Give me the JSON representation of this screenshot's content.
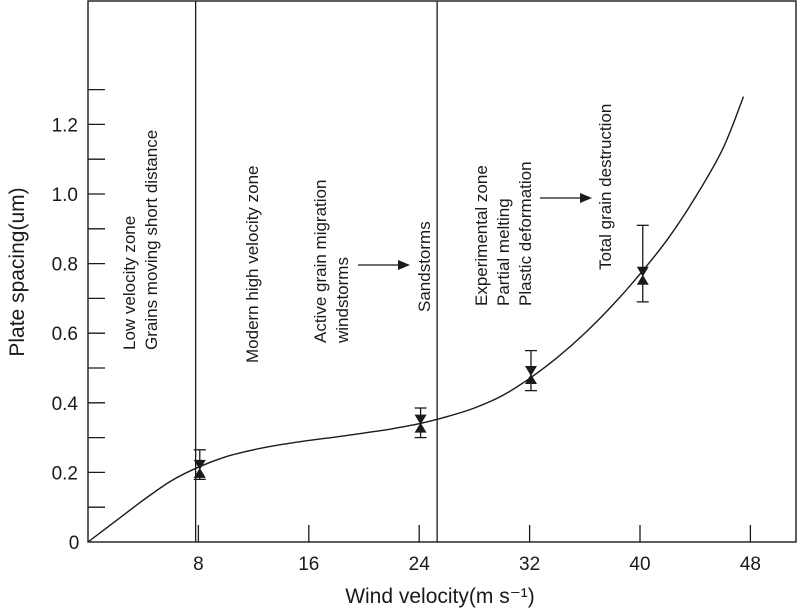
{
  "chart_data": {
    "type": "scatter",
    "xlabel": "Wind velocity(m s⁻¹)",
    "ylabel": "Plate spacing(um)",
    "xlim": [
      0,
      50
    ],
    "ylim": [
      0,
      1.4
    ],
    "x_ticks": [
      8,
      16,
      24,
      32,
      40,
      48
    ],
    "y_ticks": [
      0.2,
      0.4,
      0.6,
      0.8,
      1.0,
      1.2
    ],
    "y_minor_ticks": [
      0.1,
      0.3,
      0.5,
      0.7,
      0.9,
      1.1,
      1.3
    ],
    "origin_label": "0",
    "grid": false,
    "points": [
      {
        "x": 8.1,
        "y": 0.21,
        "err_low": 0.18,
        "err_high": 0.265
      },
      {
        "x": 24.1,
        "y": 0.34,
        "err_low": 0.3,
        "err_high": 0.385
      },
      {
        "x": 32.1,
        "y": 0.48,
        "err_low": 0.435,
        "err_high": 0.55
      },
      {
        "x": 40.2,
        "y": 0.765,
        "err_low": 0.69,
        "err_high": 0.91
      }
    ],
    "fit_curve": [
      [
        0,
        0.0
      ],
      [
        2,
        0.06
      ],
      [
        4,
        0.12
      ],
      [
        6,
        0.175
      ],
      [
        8,
        0.215
      ],
      [
        10,
        0.245
      ],
      [
        12,
        0.265
      ],
      [
        14,
        0.28
      ],
      [
        16,
        0.292
      ],
      [
        18,
        0.302
      ],
      [
        20,
        0.313
      ],
      [
        22,
        0.325
      ],
      [
        24,
        0.34
      ],
      [
        26,
        0.36
      ],
      [
        28,
        0.385
      ],
      [
        30,
        0.42
      ],
      [
        32,
        0.47
      ],
      [
        34,
        0.53
      ],
      [
        36,
        0.6
      ],
      [
        38,
        0.68
      ],
      [
        40,
        0.77
      ],
      [
        42,
        0.87
      ],
      [
        44,
        0.99
      ],
      [
        46,
        1.13
      ],
      [
        47.5,
        1.28
      ]
    ],
    "dividers": [
      {
        "x": 7.8
      },
      {
        "x": 25.3
      }
    ],
    "annotations": [
      {
        "lines": [
          "Low velocity zone",
          "Grains moving short distance"
        ]
      },
      {
        "lines": [
          "Modern high velocity zone"
        ]
      },
      {
        "lines": [
          "Active grain migration",
          "windstorms"
        ]
      },
      {
        "lines": [
          "Sandstorms"
        ]
      },
      {
        "lines": [
          "Experimental zone",
          "Partial melting",
          "Plastic deformation"
        ]
      },
      {
        "lines": [
          "Total grain destruction"
        ]
      }
    ]
  }
}
